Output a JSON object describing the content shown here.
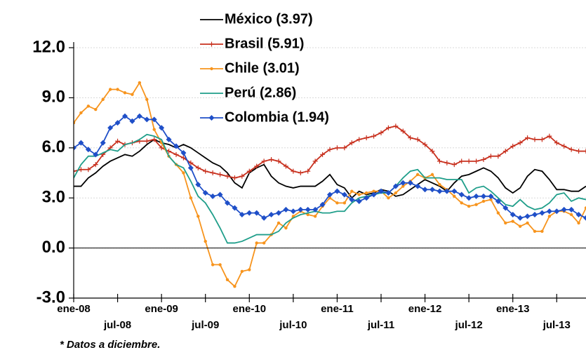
{
  "chart_data": {
    "type": "line",
    "footnote": "* Datos a diciembre.",
    "categories": [
      "ene-08",
      null,
      null,
      null,
      null,
      null,
      "jul-08",
      null,
      null,
      null,
      null,
      null,
      "ene-09",
      null,
      null,
      null,
      null,
      null,
      "jul-09",
      null,
      null,
      null,
      null,
      null,
      "ene-10",
      null,
      null,
      null,
      null,
      null,
      "jul-10",
      null,
      null,
      null,
      null,
      null,
      "ene-11",
      null,
      null,
      null,
      null,
      null,
      "jul-11",
      null,
      null,
      null,
      null,
      null,
      "ene-12",
      null,
      null,
      null,
      null,
      null,
      "jul-12",
      null,
      null,
      null,
      null,
      null,
      "ene-13",
      null,
      null,
      null,
      null,
      null,
      "jul-13",
      null,
      null,
      null,
      null
    ],
    "ylim": [
      -3,
      12
    ],
    "yticks": [
      {
        "value": -3,
        "label": "-3.0"
      },
      {
        "value": 0,
        "label": "0.0"
      },
      {
        "value": 3,
        "label": "3.0"
      },
      {
        "value": 6,
        "label": "6.0"
      },
      {
        "value": 9,
        "label": "9.0"
      },
      {
        "value": 12,
        "label": "12.0"
      }
    ],
    "grid": true,
    "series": [
      {
        "name": "México (3.97)",
        "color": "#000000",
        "marker": "none",
        "values": [
          3.7,
          3.7,
          4.2,
          4.5,
          4.9,
          5.2,
          5.4,
          5.6,
          5.5,
          5.8,
          6.2,
          6.5,
          6.3,
          6.2,
          6.0,
          6.2,
          6.0,
          5.7,
          5.4,
          5.1,
          4.9,
          4.5,
          3.9,
          3.6,
          4.5,
          4.8,
          5.0,
          4.3,
          3.9,
          3.7,
          3.6,
          3.7,
          3.7,
          3.7,
          4.0,
          4.4,
          3.8,
          3.6,
          3.0,
          3.4,
          3.2,
          3.3,
          3.5,
          3.4,
          3.1,
          3.2,
          3.5,
          3.8,
          4.1,
          3.9,
          3.7,
          3.4,
          3.9,
          4.3,
          4.4,
          4.6,
          4.8,
          4.6,
          4.2,
          3.6,
          3.3,
          3.6,
          4.3,
          4.7,
          4.6,
          4.1,
          3.5,
          3.5,
          3.4,
          3.4,
          3.7
        ]
      },
      {
        "name": "Brasil (5.91)",
        "color": "#c8301e",
        "marker": "plus",
        "values": [
          4.6,
          4.7,
          4.7,
          5.0,
          5.6,
          6.0,
          6.4,
          6.2,
          6.3,
          6.4,
          6.4,
          6.5,
          6.0,
          5.8,
          5.6,
          5.4,
          5.1,
          4.8,
          4.6,
          4.5,
          4.4,
          4.3,
          4.2,
          4.3,
          4.6,
          4.9,
          5.2,
          5.3,
          5.2,
          4.9,
          4.6,
          4.5,
          4.6,
          5.2,
          5.6,
          5.9,
          6.0,
          6.0,
          6.3,
          6.5,
          6.6,
          6.7,
          6.9,
          7.2,
          7.3,
          7.0,
          6.6,
          6.5,
          6.2,
          5.8,
          5.2,
          5.1,
          5.0,
          5.2,
          5.2,
          5.2,
          5.3,
          5.5,
          5.5,
          5.8,
          6.1,
          6.3,
          6.6,
          6.5,
          6.5,
          6.7,
          6.3,
          6.1,
          5.9,
          5.8,
          5.8
        ]
      },
      {
        "name": "Chile (3.01)",
        "color": "#f7941d",
        "marker": "circle",
        "values": [
          7.5,
          8.1,
          8.5,
          8.3,
          8.9,
          9.5,
          9.5,
          9.3,
          9.2,
          9.9,
          8.9,
          7.1,
          6.3,
          5.5,
          5.0,
          4.5,
          3.0,
          1.9,
          0.4,
          -1.0,
          -1.0,
          -1.9,
          -2.3,
          -1.4,
          -1.3,
          0.3,
          0.3,
          0.8,
          1.5,
          1.2,
          1.9,
          2.2,
          2.0,
          1.9,
          2.5,
          3.0,
          2.7,
          2.7,
          3.4,
          3.2,
          3.3,
          3.4,
          3.4,
          3.0,
          3.3,
          3.7,
          4.0,
          4.4,
          4.2,
          4.4,
          3.8,
          3.5,
          3.1,
          2.7,
          2.5,
          2.6,
          2.8,
          2.9,
          2.1,
          1.5,
          1.6,
          1.3,
          1.5,
          1.0,
          1.0,
          1.9,
          2.2,
          2.2,
          2.0,
          1.5,
          2.4
        ]
      },
      {
        "name": "Perú (2.86)",
        "color": "#1f9e8a",
        "marker": "none",
        "values": [
          4.2,
          5.0,
          5.5,
          5.5,
          5.7,
          5.9,
          5.8,
          6.2,
          6.3,
          6.5,
          6.8,
          6.7,
          6.5,
          5.5,
          5.0,
          4.8,
          4.0,
          3.1,
          2.7,
          2.0,
          1.2,
          0.3,
          0.3,
          0.4,
          0.6,
          0.8,
          0.8,
          0.8,
          1.0,
          1.5,
          1.8,
          2.0,
          2.1,
          2.2,
          2.1,
          2.1,
          2.2,
          2.2,
          2.7,
          3.0,
          3.1,
          3.2,
          3.3,
          3.3,
          3.7,
          4.2,
          4.6,
          4.7,
          4.2,
          4.2,
          4.2,
          4.1,
          4.1,
          4.1,
          3.3,
          3.6,
          3.7,
          3.4,
          3.0,
          2.6,
          2.5,
          2.9,
          2.5,
          2.3,
          2.4,
          2.7,
          3.2,
          3.3,
          2.8,
          3.0,
          2.9
        ]
      },
      {
        "name": "Colombia (1.94)",
        "color": "#1f4fc8",
        "marker": "diamond",
        "values": [
          6.0,
          6.3,
          5.9,
          5.6,
          6.3,
          7.2,
          7.5,
          7.9,
          7.6,
          7.9,
          7.7,
          7.7,
          7.2,
          6.5,
          6.1,
          5.7,
          4.8,
          3.8,
          3.3,
          3.1,
          3.2,
          2.7,
          2.4,
          2.0,
          2.1,
          2.1,
          1.8,
          2.0,
          2.1,
          2.3,
          2.2,
          2.3,
          2.3,
          2.3,
          2.6,
          3.2,
          3.4,
          3.2,
          2.9,
          2.8,
          3.0,
          3.2,
          3.4,
          3.3,
          3.7,
          3.9,
          3.9,
          3.7,
          3.5,
          3.5,
          3.4,
          3.4,
          3.4,
          3.2,
          3.0,
          3.1,
          3.1,
          3.1,
          2.8,
          2.4,
          2.0,
          1.8,
          1.9,
          2.0,
          2.1,
          2.2,
          2.2,
          2.3,
          2.3,
          2.0,
          1.8
        ]
      }
    ]
  }
}
